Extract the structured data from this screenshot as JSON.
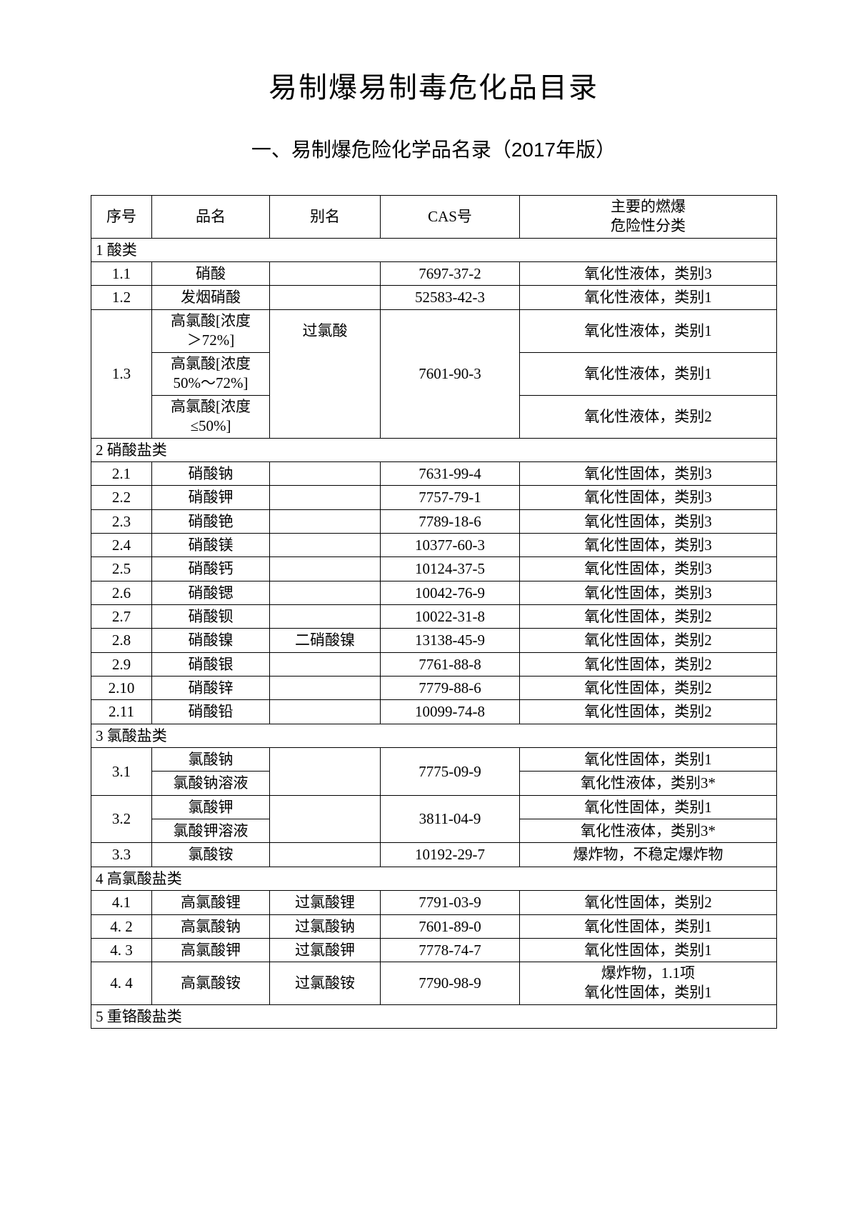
{
  "title": "易制爆易制毒危化品目录",
  "section_heading": "一、易制爆危险化学品名录（2017年版）",
  "columns": {
    "idx": "序号",
    "name": "品名",
    "alias": "别名",
    "cas": "CAS号",
    "hazard_line1": "主要的燃爆",
    "hazard_line2": "危险性分类"
  },
  "sections": {
    "s1": "1 酸类",
    "s2": "2 硝酸盐类",
    "s3": "3 氯酸盐类",
    "s4": "4 高氯酸盐类",
    "s5": "5 重铬酸盐类"
  },
  "rows": {
    "r1_1": {
      "idx": "1.1",
      "name": "硝酸",
      "alias": "",
      "cas": "7697-37-2",
      "hazard": "氧化性液体，类别3"
    },
    "r1_2": {
      "idx": "1.2",
      "name": "发烟硝酸",
      "alias": "",
      "cas": "52583-42-3",
      "hazard": "氧化性液体，类别1"
    },
    "r1_3a": {
      "name1": "高氯酸[浓度",
      "name2": "＞72%]",
      "alias": "过氯酸",
      "hazard": "氧化性液体，类别1"
    },
    "r1_3b": {
      "idx": "1.3",
      "name1": "高氯酸[浓度",
      "name2": "50%～72%]",
      "cas": "7601-90-3",
      "hazard": "氧化性液体，类别1"
    },
    "r1_3c": {
      "name1": "高氯酸[浓度",
      "name2": "≤50%]",
      "hazard": "氧化性液体，类别2"
    },
    "r2_1": {
      "idx": "2.1",
      "name": "硝酸钠",
      "alias": "",
      "cas": "7631-99-4",
      "hazard": "氧化性固体，类别3"
    },
    "r2_2": {
      "idx": "2.2",
      "name": "硝酸钾",
      "alias": "",
      "cas": "7757-79-1",
      "hazard": "氧化性固体，类别3"
    },
    "r2_3": {
      "idx": "2.3",
      "name": "硝酸铯",
      "alias": "",
      "cas": "7789-18-6",
      "hazard": "氧化性固体，类别3"
    },
    "r2_4": {
      "idx": "2.4",
      "name": "硝酸镁",
      "alias": "",
      "cas": "10377-60-3",
      "hazard": "氧化性固体，类别3"
    },
    "r2_5": {
      "idx": "2.5",
      "name": "硝酸钙",
      "alias": "",
      "cas": "10124-37-5",
      "hazard": "氧化性固体，类别3"
    },
    "r2_6": {
      "idx": "2.6",
      "name": "硝酸锶",
      "alias": "",
      "cas": "10042-76-9",
      "hazard": "氧化性固体，类别3"
    },
    "r2_7": {
      "idx": "2.7",
      "name": "硝酸钡",
      "alias": "",
      "cas": "10022-31-8",
      "hazard": "氧化性固体，类别2"
    },
    "r2_8": {
      "idx": "2.8",
      "name": "硝酸镍",
      "alias": "二硝酸镍",
      "cas": "13138-45-9",
      "hazard": "氧化性固体，类别2"
    },
    "r2_9": {
      "idx": "2.9",
      "name": "硝酸银",
      "alias": "",
      "cas": "7761-88-8",
      "hazard": "氧化性固体，类别2"
    },
    "r2_10": {
      "idx": "2.10",
      "name": "硝酸锌",
      "alias": "",
      "cas": "7779-88-6",
      "hazard": "氧化性固体，类别2"
    },
    "r2_11": {
      "idx": "2.11",
      "name": "硝酸铅",
      "alias": "",
      "cas": "10099-74-8",
      "hazard": "氧化性固体，类别2"
    },
    "r3_1a": {
      "idx": "3.1",
      "name": "氯酸钠",
      "cas": "7775-09-9",
      "hazard": "氧化性固体，类别1"
    },
    "r3_1b": {
      "name": "氯酸钠溶液",
      "hazard": "氧化性液体，类别3*"
    },
    "r3_2a": {
      "idx": "3.2",
      "name": "氯酸钾",
      "cas": "3811-04-9",
      "hazard": "氧化性固体，类别1"
    },
    "r3_2b": {
      "name": "氯酸钾溶液",
      "hazard": "氧化性液体，类别3*"
    },
    "r3_3": {
      "idx": "3.3",
      "name": "氯酸铵",
      "cas": "10192-29-7",
      "hazard": "爆炸物，不稳定爆炸物"
    },
    "r4_1": {
      "idx": "4.1",
      "name": "高氯酸锂",
      "alias": "过氯酸锂",
      "cas": "7791-03-9",
      "hazard": "氧化性固体，类别2"
    },
    "r4_2": {
      "idx": "4. 2",
      "name": "高氯酸钠",
      "alias": "过氯酸钠",
      "cas": "7601-89-0",
      "hazard": "氧化性固体，类别1"
    },
    "r4_3": {
      "idx": "4. 3",
      "name": "高氯酸钾",
      "alias": "过氯酸钾",
      "cas": "7778-74-7",
      "hazard": "氧化性固体，类别1"
    },
    "r4_4": {
      "idx": "4. 4",
      "name": "高氯酸铵",
      "alias": "过氯酸铵",
      "cas": "7790-98-9",
      "hazard1": "爆炸物，1.1项",
      "hazard2": "氧化性固体，类别1"
    }
  }
}
